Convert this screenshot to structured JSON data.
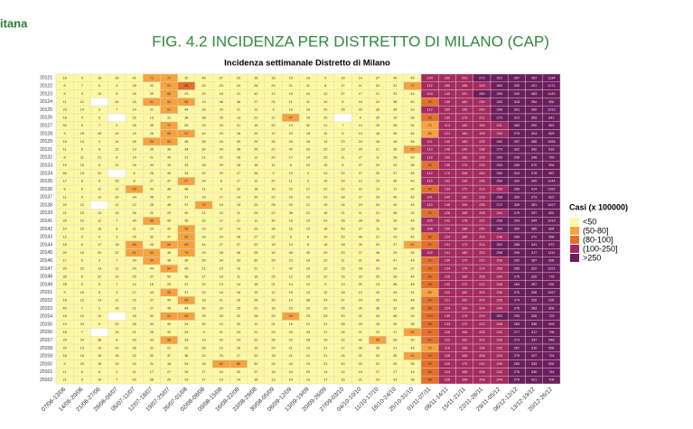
{
  "header": {
    "logo_text": "itana"
  },
  "chart_data": {
    "type": "heatmap",
    "title": "FIG. 4.2 INCIDENZA PER DISTRETTO DI MILANO (CAP)",
    "subtitle": "Incidenza settimanale Distretto di Milano",
    "x": [
      "07/06-13/06",
      "14/06-20/06",
      "21/06-27/06",
      "28/06-04/07",
      "05/07-11/07",
      "12/07-18/07",
      "19/07-25/07",
      "26/07-01/08",
      "02/08-08/08",
      "09/08-15/08",
      "16/08-22/08",
      "23/08-29/08",
      "30/08-05/09",
      "06/09-12/09",
      "13/09-19/09",
      "20/09-26/09",
      "27/09-03/10",
      "04/10-10/10",
      "11/10-17/10",
      "18/10-24/10",
      "25/10-31/10",
      "01/11-07/11",
      "08/11-14/11",
      "15/11-21/11",
      "22/11-28/11",
      "29/11-05/12",
      "06/12-12/12",
      "13/12-19/12",
      "20/12-26/12"
    ],
    "categories": [
      "20121",
      "20122",
      "20123",
      "20124",
      "20125",
      "20126",
      "20127",
      "20128",
      "20129",
      "20131",
      "20132",
      "20133",
      "20134",
      "20135",
      "20136",
      "20137",
      "20138",
      "20139",
      "20141",
      "20142",
      "20143",
      "20144",
      "20145",
      "20146",
      "20147",
      "20148",
      "20149",
      "20151",
      "20152",
      "20153",
      "20154",
      "20155",
      "20156",
      "20157",
      "20158",
      "20159",
      "20160",
      "20161",
      "20162"
    ],
    "values": [
      [
        18,
        9,
        18,
        16,
        41,
        71,
        71,
        32,
        46,
        27,
        23,
        18,
        16,
        19,
        14,
        9,
        16,
        14,
        27,
        40,
        45,
        134,
        160,
        201,
        273,
        310,
        357,
        457,
        1134
      ],
      [
        6,
        7,
        6,
        4,
        29,
        32,
        51,
        88,
        32,
        23,
        24,
        26,
        29,
        21,
        11,
        8,
        17,
        11,
        22,
        31,
        70,
        112,
        150,
        188,
        243,
        300,
        330,
        421,
        1171
      ],
      [
        5,
        3,
        12,
        8,
        16,
        39,
        66,
        23,
        20,
        18,
        21,
        42,
        13,
        18,
        24,
        12,
        27,
        17,
        21,
        33,
        44,
        104,
        140,
        191,
        260,
        295,
        340,
        463,
        1149
      ],
      [
        11,
        21,
        null,
        24,
        15,
        51,
        54,
        56,
        13,
        46,
        38,
        27,
        21,
        11,
        11,
        10,
        8,
        16,
        24,
        38,
        40,
        99,
        138,
        180,
        230,
        280,
        318,
        354,
        950
      ],
      [
        23,
        14,
        3,
        7,
        14,
        31,
        61,
        44,
        26,
        29,
        21,
        12,
        9,
        16,
        16,
        20,
        25,
        26,
        28,
        34,
        33,
        112,
        160,
        190,
        240,
        268,
        301,
        360,
        1013
      ],
      [
        18,
        4,
        6,
        null,
        22,
        13,
        31,
        38,
        38,
        25,
        13,
        22,
        12,
        57,
        15,
        25,
        null,
        4,
        25,
        15,
        28,
        98,
        130,
        173,
        221,
        270,
        310,
        353,
        841
      ],
      [
        34,
        5,
        7,
        2,
        15,
        35,
        72,
        50,
        23,
        23,
        21,
        15,
        20,
        13,
        32,
        11,
        7,
        14,
        16,
        28,
        34,
        72,
        113,
        150,
        190,
        231,
        260,
        290,
        851
      ],
      [
        9,
        18,
        45,
        10,
        19,
        26,
        56,
        51,
        44,
        20,
        18,
        29,
        12,
        23,
        18,
        12,
        5,
        14,
        18,
        39,
        46,
        60,
        121,
        160,
        199,
        240,
        275,
        324,
        829
      ],
      [
        16,
        14,
        2,
        14,
        25,
        56,
        54,
        48,
        35,
        16,
        29,
        25,
        34,
        25,
        16,
        14,
        20,
        24,
        16,
        18,
        48,
        101,
        140,
        183,
        225,
        260,
        297,
        385,
        1066
      ],
      [
        11,
        6,
        8,
        22,
        13,
        35,
        36,
        34,
        32,
        34,
        38,
        25,
        22,
        42,
        23,
        25,
        22,
        25,
        21,
        35,
        55,
        110,
        148,
        190,
        238,
        270,
        302,
        342,
        618
      ],
      [
        8,
        11,
        21,
        8,
        19,
        21,
        40,
        21,
        21,
        22,
        28,
        12,
        20,
        17,
        14,
        25,
        11,
        27,
        11,
        28,
        50,
        118,
        150,
        186,
        226,
        265,
        295,
        348,
        769
      ],
      [
        19,
        15,
        8,
        11,
        15,
        43,
        19,
        43,
        28,
        29,
        18,
        16,
        11,
        8,
        24,
        15,
        8,
        27,
        20,
        23,
        36,
        98,
        138,
        176,
        215,
        253,
        280,
        370,
        934
      ],
      [
        46,
        13,
        22,
        null,
        8,
        26,
        40,
        34,
        22,
        29,
        17,
        26,
        9,
        19,
        4,
        13,
        22,
        27,
        20,
        37,
        46,
        112,
        170,
        206,
        240,
        280,
        310,
        378,
        687
      ],
      [
        17,
        6,
        6,
        26,
        8,
        27,
        37,
        57,
        24,
        8,
        17,
        12,
        37,
        11,
        9,
        15,
        20,
        12,
        23,
        35,
        40,
        115,
        162,
        196,
        236,
        266,
        300,
        390,
        1144
      ],
      [
        8,
        5,
        11,
        11,
        69,
        43,
        38,
        48,
        11,
        9,
        22,
        18,
        16,
        22,
        27,
        22,
        22,
        22,
        12,
        17,
        34,
        96,
        134,
        172,
        214,
        250,
        286,
        414,
        1162
      ],
      [
        11,
        9,
        12,
        24,
        34,
        45,
        27,
        37,
        19,
        17,
        14,
        29,
        22,
        29,
        12,
        23,
        33,
        27,
        23,
        40,
        43,
        101,
        145,
        182,
        228,
        268,
        300,
        373,
        822
      ],
      [
        24,
        12,
        null,
        11,
        12,
        25,
        45,
        37,
        78,
        18,
        13,
        23,
        28,
        20,
        21,
        19,
        24,
        24,
        34,
        49,
        49,
        110,
        148,
        194,
        235,
        272,
        305,
        361,
        1027
      ],
      [
        21,
        13,
        13,
        15,
        25,
        22,
        25,
        40,
        21,
        23,
        11,
        25,
        22,
        38,
        21,
        18,
        21,
        11,
        21,
        46,
        32,
        93,
        128,
        169,
        208,
        244,
        276,
        297,
        831
      ],
      [
        29,
        12,
        12,
        7,
        34,
        56,
        43,
        35,
        32,
        17,
        21,
        11,
        30,
        18,
        19,
        24,
        26,
        28,
        26,
        26,
        45,
        105,
        142,
        178,
        222,
        258,
        293,
        344,
        1019
      ],
      [
        14,
        10,
        16,
        8,
        11,
        24,
        43,
        56,
        23,
        27,
        14,
        23,
        34,
        16,
        19,
        18,
        50,
        27,
        11,
        18,
        36,
        108,
        150,
        188,
        230,
        264,
        300,
        366,
        834
      ],
      [
        12,
        9,
        9,
        3,
        25,
        32,
        47,
        52,
        26,
        24,
        28,
        27,
        21,
        8,
        8,
        10,
        20,
        46,
        21,
        23,
        42,
        86,
        124,
        165,
        209,
        246,
        280,
        372,
        958
      ],
      [
        18,
        6,
        17,
        18,
        56,
        48,
        55,
        60,
        44,
        27,
        27,
        20,
        18,
        14,
        8,
        18,
        18,
        26,
        20,
        37,
        51,
        92,
        131,
        173,
        214,
        252,
        288,
        341,
        872
      ],
      [
        20,
        10,
        20,
        22,
        51,
        54,
        48,
        79,
        29,
        28,
        46,
        25,
        16,
        46,
        30,
        29,
        20,
        27,
        46,
        29,
        34,
        102,
        141,
        180,
        222,
        258,
        296,
        417,
        1111
      ],
      [
        17,
        6,
        2,
        7,
        34,
        54,
        46,
        35,
        35,
        34,
        33,
        30,
        29,
        23,
        18,
        22,
        11,
        31,
        40,
        47,
        45,
        90,
        130,
        170,
        210,
        246,
        282,
        367,
        838
      ],
      [
        20,
        22,
        13,
        11,
        24,
        44,
        54,
        45,
        21,
        15,
        10,
        21,
        7,
        42,
        29,
        12,
        15,
        28,
        20,
        33,
        37,
        95,
        134,
        174,
        214,
        250,
        285,
        322,
        1021
      ],
      [
        35,
        8,
        22,
        14,
        25,
        27,
        50,
        36,
        17,
        18,
        11,
        16,
        25,
        12,
        20,
        22,
        15,
        20,
        20,
        28,
        44,
        86,
        125,
        166,
        205,
        240,
        276,
        326,
        776
      ],
      [
        28,
        5,
        5,
        7,
        14,
        16,
        29,
        21,
        22,
        13,
        14,
        18,
        21,
        14,
        12,
        9,
        13,
        20,
        13,
        36,
        48,
        96,
        132,
        172,
        212,
        248,
        284,
        357,
        932
      ],
      [
        9,
        15,
        6,
        3,
        17,
        43,
        55,
        37,
        22,
        16,
        16,
        19,
        12,
        18,
        12,
        12,
        18,
        12,
        10,
        43,
        31,
        80,
        120,
        160,
        200,
        236,
        270,
        308,
        1057
      ],
      [
        18,
        12,
        14,
        11,
        15,
        27,
        44,
        65,
        18,
        21,
        16,
        28,
        20,
        19,
        38,
        24,
        37,
        24,
        25,
        43,
        48,
        83,
        121,
        162,
        203,
        238,
        274,
        326,
        635
      ],
      [
        40,
        7,
        2,
        16,
        21,
        27,
        46,
        44,
        30,
        29,
        25,
        22,
        16,
        23,
        20,
        22,
        26,
        26,
        38,
        32,
        36,
        85,
        124,
        164,
        204,
        240,
        276,
        383,
        808
      ],
      [
        16,
        10,
        10,
        null,
        18,
        32,
        51,
        60,
        39,
        33,
        22,
        28,
        29,
        54,
        23,
        23,
        20,
        22,
        44,
        48,
        24,
        100,
        139,
        178,
        219,
        254,
        290,
        326,
        723
      ],
      [
        14,
        24,
        9,
        20,
        28,
        33,
        40,
        24,
        30,
        12,
        20,
        11,
        21,
        16,
        21,
        21,
        25,
        29,
        15,
        39,
        38,
        95,
        133,
        172,
        212,
        248,
        283,
        336,
        693
      ],
      [
        18,
        7,
        null,
        14,
        21,
        25,
        42,
        24,
        9,
        21,
        24,
        21,
        23,
        20,
        33,
        17,
        24,
        21,
        23,
        17,
        55,
        87,
        126,
        166,
        205,
        242,
        277,
        317,
        796
      ],
      [
        24,
        24,
        38,
        8,
        43,
        33,
        56,
        33,
        19,
        32,
        24,
        22,
        34,
        22,
        28,
        10,
        22,
        42,
        56,
        26,
        30,
        82,
        122,
        162,
        202,
        238,
        273,
        337,
        946
      ],
      [
        20,
        13,
        10,
        20,
        28,
        21,
        21,
        22,
        35,
        12,
        16,
        15,
        24,
        21,
        12,
        21,
        17,
        26,
        28,
        21,
        45,
        76,
        116,
        156,
        196,
        232,
        267,
        310,
        656
      ],
      [
        18,
        18,
        16,
        18,
        22,
        32,
        37,
        36,
        22,
        23,
        17,
        22,
        15,
        21,
        12,
        21,
        24,
        22,
        24,
        35,
        51,
        92,
        128,
        168,
        208,
        244,
        279,
        327,
        724
      ],
      [
        9,
        20,
        18,
        10,
        24,
        21,
        18,
        24,
        16,
        62,
        56,
        30,
        24,
        44,
        19,
        21,
        20,
        20,
        22,
        26,
        35,
        90,
        129,
        170,
        210,
        246,
        280,
        333,
        832
      ],
      [
        11,
        6,
        8,
        2,
        11,
        17,
        27,
        26,
        17,
        24,
        32,
        27,
        18,
        24,
        20,
        14,
        12,
        19,
        17,
        27,
        43,
        85,
        124,
        165,
        206,
        242,
        276,
        340,
        744
      ],
      [
        21,
        9,
        10,
        7,
        20,
        38,
        20,
        23,
        17,
        19,
        14,
        18,
        13,
        15,
        13,
        17,
        16,
        21,
        23,
        33,
        38,
        88,
        128,
        168,
        208,
        244,
        279,
        321,
        708
      ]
    ],
    "legend": {
      "title": "Casi (x 100000)",
      "labels": [
        "<50",
        "(50-80]",
        "(80-100]",
        "(100-250]",
        ">250"
      ],
      "thresholds": [
        50,
        80,
        100,
        250
      ],
      "colors": [
        "#fdf8a2",
        "#f5a340",
        "#e4702a",
        "#a52a5e",
        "#6b1d5c"
      ]
    }
  }
}
